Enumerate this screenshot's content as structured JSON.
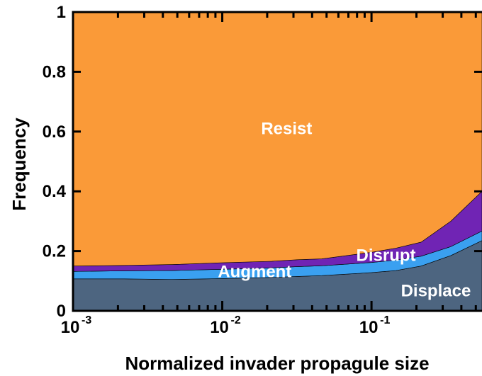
{
  "chart_data": {
    "type": "area",
    "stacked": true,
    "xlabel": "Normalized invader propagule size",
    "ylabel": "Frequency",
    "xscale": "log",
    "xlim": [
      0.001,
      0.55
    ],
    "ylim": [
      0,
      1
    ],
    "grid": false,
    "x_ticks": [
      {
        "value": 0.001,
        "base": "10",
        "exp": "-3"
      },
      {
        "value": 0.01,
        "base": "10",
        "exp": "-2"
      },
      {
        "value": 0.1,
        "base": "10",
        "exp": "-1"
      }
    ],
    "y_ticks": [
      {
        "value": 0,
        "label": "0"
      },
      {
        "value": 0.2,
        "label": "0.2"
      },
      {
        "value": 0.4,
        "label": "0.4"
      },
      {
        "value": 0.6,
        "label": "0.6"
      },
      {
        "value": 0.8,
        "label": "0.8"
      },
      {
        "value": 1,
        "label": "1"
      }
    ],
    "x": [
      0.001,
      0.0022,
      0.0046,
      0.01,
      0.0215,
      0.0316,
      0.0464,
      0.1,
      0.146,
      0.215,
      0.34,
      0.55
    ],
    "series": [
      {
        "name": "Displace",
        "color": "#4d6580",
        "values": [
          0.107,
          0.107,
          0.105,
          0.108,
          0.112,
          0.115,
          0.118,
          0.128,
          0.135,
          0.15,
          0.185,
          0.235
        ]
      },
      {
        "name": "Augment",
        "color": "#3aa0f0",
        "values": [
          0.025,
          0.027,
          0.03,
          0.031,
          0.032,
          0.033,
          0.033,
          0.034,
          0.035,
          0.033,
          0.03,
          0.032
        ]
      },
      {
        "name": "Disrupt",
        "color": "#7024b4",
        "values": [
          0.018,
          0.018,
          0.02,
          0.022,
          0.022,
          0.023,
          0.023,
          0.034,
          0.04,
          0.047,
          0.085,
          0.133
        ]
      },
      {
        "name": "Resist",
        "color": "#fa9a38",
        "values": [
          0.85,
          0.848,
          0.845,
          0.839,
          0.834,
          0.829,
          0.826,
          0.804,
          0.79,
          0.77,
          0.7,
          0.6
        ]
      }
    ],
    "region_labels": [
      {
        "text": "Resist",
        "x": 0.027,
        "y": 0.61
      },
      {
        "text": "Disrupt",
        "x": 0.125,
        "y": 0.186
      },
      {
        "text": "Augment",
        "x": 0.0165,
        "y": 0.132
      },
      {
        "text": "Displace",
        "x": 0.27,
        "y": 0.068
      }
    ]
  }
}
